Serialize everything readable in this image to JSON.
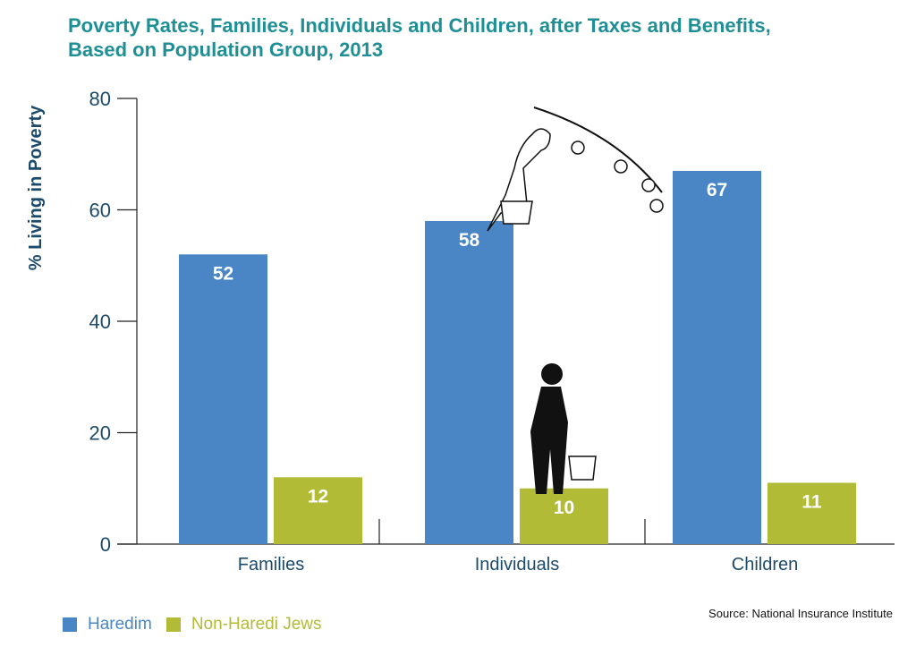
{
  "chart_data": {
    "type": "bar",
    "title": [
      "Poverty Rates, Families, Individuals and Children, after Taxes and Benefits,",
      "Based on Population Group, 2013"
    ],
    "categories": [
      "Families",
      "Individuals",
      "Children"
    ],
    "series": [
      {
        "name": "Haredim",
        "values": [
          52,
          58,
          67
        ],
        "color": "#4a86c5"
      },
      {
        "name": "Non-Haredi Jews",
        "values": [
          12,
          10,
          11
        ],
        "color": "#b2bb35"
      }
    ],
    "ylabel": "%  Living in Poverty",
    "xlabel": "",
    "ylim": [
      0,
      80
    ],
    "yticks": [
      0,
      20,
      40,
      60,
      80
    ],
    "grid": false,
    "legend": "bottom-left",
    "source": "Source: National Insurance Institute"
  }
}
